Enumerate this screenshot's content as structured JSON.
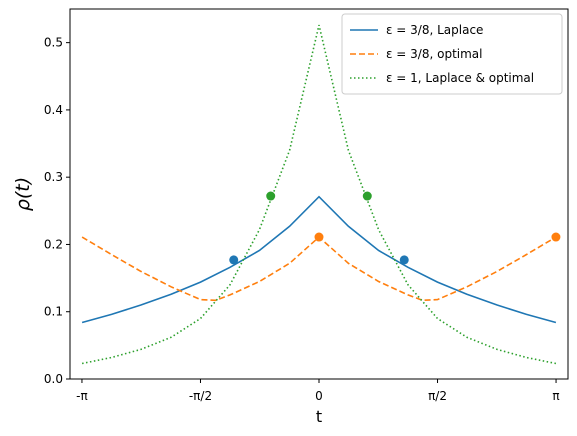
{
  "chart_data": {
    "type": "line",
    "xlabel": "t",
    "ylabel": "ρ(t)",
    "xlim": [
      -3.3,
      3.3
    ],
    "ylim": [
      0.0,
      0.55
    ],
    "xticks": [
      {
        "value": -3.14159,
        "label": "-π"
      },
      {
        "value": -1.5708,
        "label": "-π/2"
      },
      {
        "value": 0,
        "label": "0"
      },
      {
        "value": 1.5708,
        "label": "π/2"
      },
      {
        "value": 3.14159,
        "label": "π"
      }
    ],
    "yticks": [
      0.0,
      0.1,
      0.2,
      0.3,
      0.4,
      0.5
    ],
    "legend_position": "top-right",
    "grid": false,
    "series": [
      {
        "name": "ε = 3/8, Laplace",
        "color": "#1f77b4",
        "style": "solid",
        "x": [
          -3.14,
          -2.75,
          -2.36,
          -1.96,
          -1.57,
          -1.18,
          -0.79,
          -0.39,
          0,
          0.39,
          0.79,
          1.18,
          1.57,
          1.96,
          2.36,
          2.75,
          3.14
        ],
        "y": [
          0.084,
          0.096,
          0.11,
          0.126,
          0.144,
          0.166,
          0.191,
          0.227,
          0.271,
          0.227,
          0.191,
          0.166,
          0.144,
          0.126,
          0.11,
          0.096,
          0.084
        ],
        "markers": [
          {
            "x": -1.13,
            "y": 0.177
          },
          {
            "x": 1.13,
            "y": 0.177
          }
        ]
      },
      {
        "name": "ε = 3/8, optimal",
        "color": "#ff7f0e",
        "style": "dashed",
        "x": [
          -3.14,
          -2.75,
          -2.36,
          -1.96,
          -1.57,
          -1.37,
          -1.18,
          -0.79,
          -0.39,
          0,
          0.39,
          0.79,
          1.18,
          1.37,
          1.57,
          1.96,
          2.36,
          2.75,
          3.14
        ],
        "y": [
          0.211,
          0.185,
          0.16,
          0.137,
          0.118,
          0.117,
          0.125,
          0.145,
          0.172,
          0.211,
          0.172,
          0.145,
          0.125,
          0.117,
          0.118,
          0.137,
          0.16,
          0.185,
          0.211
        ],
        "markers": [
          {
            "x": 0,
            "y": 0.211
          },
          {
            "x": 3.14,
            "y": 0.211
          }
        ]
      },
      {
        "name": "ε = 1, Laplace & optimal",
        "color": "#2ca02c",
        "style": "dotted",
        "x": [
          -3.14,
          -2.75,
          -2.36,
          -1.96,
          -1.57,
          -1.18,
          -0.79,
          -0.39,
          0,
          0.39,
          0.79,
          1.18,
          1.57,
          1.96,
          2.36,
          2.75,
          3.14
        ],
        "y": [
          0.023,
          0.032,
          0.044,
          0.062,
          0.09,
          0.14,
          0.222,
          0.34,
          0.526,
          0.34,
          0.222,
          0.14,
          0.09,
          0.062,
          0.044,
          0.032,
          0.023
        ],
        "markers": [
          {
            "x": -0.64,
            "y": 0.272
          },
          {
            "x": 0.64,
            "y": 0.272
          }
        ]
      }
    ]
  }
}
